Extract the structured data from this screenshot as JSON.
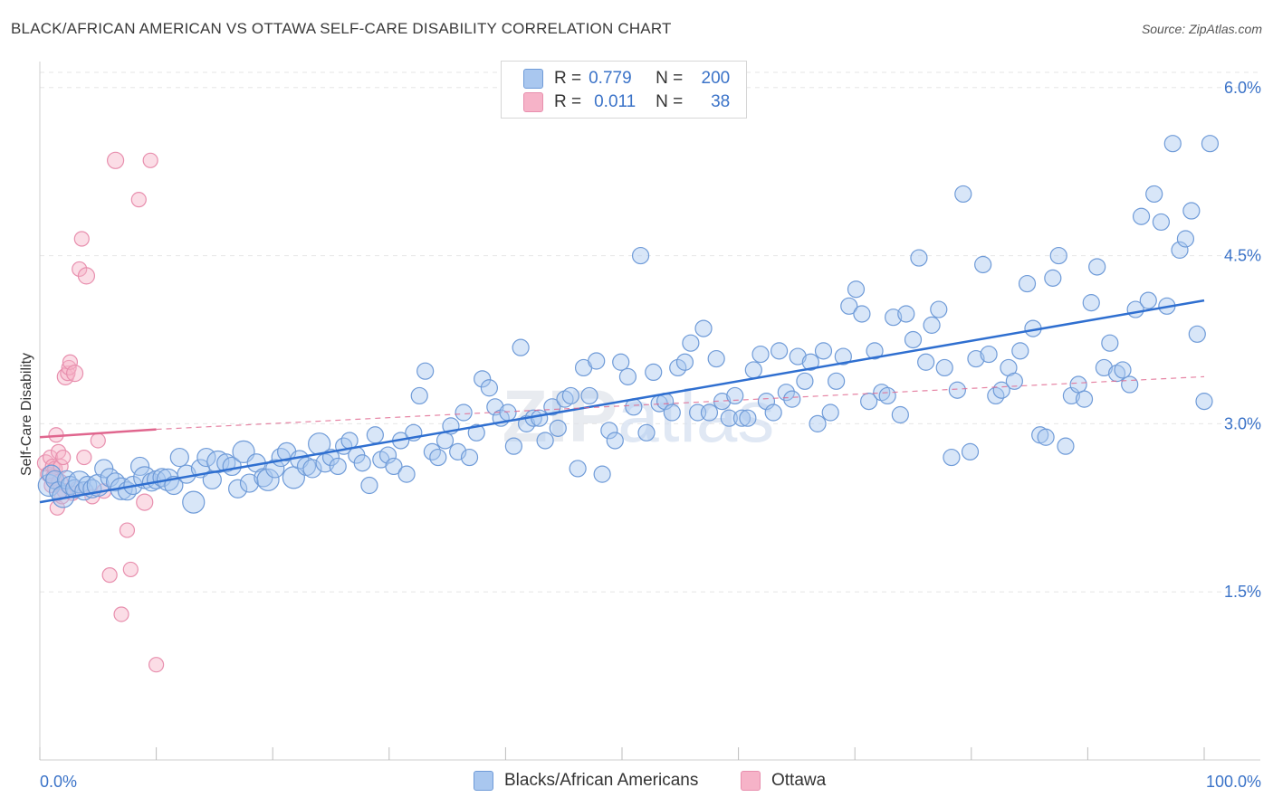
{
  "header": {
    "title": "BLACK/AFRICAN AMERICAN VS OTTAWA SELF-CARE DISABILITY CORRELATION CHART",
    "source": "Source: ZipAtlas.com"
  },
  "legend": {
    "rows": [
      {
        "r_label": "R =",
        "r_value": "0.779",
        "n_label": "N =",
        "n_value": "200",
        "color": "#a9c7ef"
      },
      {
        "r_label": "R =",
        "r_value": "0.011",
        "n_label": "N =",
        "n_value": "38",
        "color": "#f6b3c8"
      }
    ]
  },
  "bottom_legend": [
    {
      "label": "Blacks/African Americans",
      "color": "#a9c7ef"
    },
    {
      "label": "Ottawa",
      "color": "#f6b3c8"
    }
  ],
  "colors": {
    "blue_fill": "#a9c7ef",
    "blue_stroke": "#6f9bd8",
    "blue_line": "#2f6fd0",
    "pink_fill": "#f6b3c8",
    "pink_stroke": "#e88fae",
    "pink_line": "#e0668e",
    "tick_label": "#3b73c8",
    "grid": "#e6e6e6"
  },
  "chart_data": {
    "type": "scatter",
    "title": "BLACK/AFRICAN AMERICAN VS OTTAWA SELF-CARE DISABILITY CORRELATION CHART",
    "xlabel": "",
    "ylabel": "Self-Care Disability",
    "xlim": [
      0,
      100
    ],
    "ylim": [
      0,
      6.2
    ],
    "x_tick_labels": [
      "0.0%",
      "100.0%"
    ],
    "y_ticks": [
      1.5,
      3.0,
      4.5,
      6.0
    ],
    "y_tick_labels": [
      "1.5%",
      "3.0%",
      "4.5%",
      "6.0%"
    ],
    "grid": true,
    "watermark": "ZIPatlas",
    "series": [
      {
        "name": "Blacks/African Americans",
        "R": 0.779,
        "N": 200,
        "trend": {
          "x": [
            0,
            100
          ],
          "y": [
            2.3,
            4.1
          ]
        },
        "points": [
          [
            0.8,
            2.45
          ],
          [
            1.0,
            2.55
          ],
          [
            1.3,
            2.5
          ],
          [
            1.6,
            2.4
          ],
          [
            2.0,
            2.35
          ],
          [
            2.3,
            2.5
          ],
          [
            2.6,
            2.45
          ],
          [
            3.0,
            2.42
          ],
          [
            3.4,
            2.48
          ],
          [
            3.8,
            2.4
          ],
          [
            4.1,
            2.45
          ],
          [
            4.5,
            2.42
          ],
          [
            5.0,
            2.45
          ],
          [
            5.5,
            2.6
          ],
          [
            6.0,
            2.52
          ],
          [
            6.5,
            2.48
          ],
          [
            7.0,
            2.42
          ],
          [
            7.5,
            2.4
          ],
          [
            8.0,
            2.45
          ],
          [
            8.6,
            2.62
          ],
          [
            9.0,
            2.52
          ],
          [
            9.6,
            2.48
          ],
          [
            10.0,
            2.5
          ],
          [
            10.5,
            2.52
          ],
          [
            11.0,
            2.5
          ],
          [
            11.5,
            2.45
          ],
          [
            12.0,
            2.7
          ],
          [
            12.6,
            2.55
          ],
          [
            13.2,
            2.3
          ],
          [
            13.8,
            2.6
          ],
          [
            14.3,
            2.7
          ],
          [
            14.8,
            2.5
          ],
          [
            15.3,
            2.66
          ],
          [
            16.0,
            2.65
          ],
          [
            16.5,
            2.62
          ],
          [
            17.0,
            2.42
          ],
          [
            17.5,
            2.75
          ],
          [
            18.0,
            2.47
          ],
          [
            18.6,
            2.65
          ],
          [
            19.2,
            2.52
          ],
          [
            19.6,
            2.5
          ],
          [
            20.2,
            2.6
          ],
          [
            20.7,
            2.7
          ],
          [
            21.2,
            2.75
          ],
          [
            21.8,
            2.52
          ],
          [
            22.3,
            2.68
          ],
          [
            22.9,
            2.62
          ],
          [
            23.4,
            2.6
          ],
          [
            24.0,
            2.82
          ],
          [
            24.5,
            2.65
          ],
          [
            25.0,
            2.7
          ],
          [
            25.6,
            2.62
          ],
          [
            26.1,
            2.8
          ],
          [
            26.6,
            2.85
          ],
          [
            27.2,
            2.72
          ],
          [
            27.7,
            2.65
          ],
          [
            28.3,
            2.45
          ],
          [
            28.8,
            2.9
          ],
          [
            29.3,
            2.68
          ],
          [
            29.9,
            2.72
          ],
          [
            30.4,
            2.62
          ],
          [
            31.0,
            2.85
          ],
          [
            31.5,
            2.55
          ],
          [
            32.1,
            2.92
          ],
          [
            32.6,
            3.25
          ],
          [
            33.1,
            3.47
          ],
          [
            33.7,
            2.75
          ],
          [
            34.2,
            2.7
          ],
          [
            34.8,
            2.85
          ],
          [
            35.3,
            2.98
          ],
          [
            35.9,
            2.75
          ],
          [
            36.4,
            3.1
          ],
          [
            36.9,
            2.7
          ],
          [
            37.5,
            2.92
          ],
          [
            38.0,
            3.4
          ],
          [
            38.6,
            3.32
          ],
          [
            39.1,
            3.15
          ],
          [
            39.6,
            3.05
          ],
          [
            40.2,
            3.1
          ],
          [
            40.7,
            2.8
          ],
          [
            41.3,
            3.68
          ],
          [
            41.8,
            3.0
          ],
          [
            42.4,
            3.05
          ],
          [
            42.9,
            3.05
          ],
          [
            43.4,
            2.85
          ],
          [
            44.0,
            3.15
          ],
          [
            44.5,
            2.96
          ],
          [
            45.1,
            3.22
          ],
          [
            45.6,
            3.25
          ],
          [
            46.2,
            2.6
          ],
          [
            46.7,
            3.5
          ],
          [
            47.2,
            3.25
          ],
          [
            47.8,
            3.56
          ],
          [
            48.3,
            2.55
          ],
          [
            48.9,
            2.94
          ],
          [
            49.4,
            2.85
          ],
          [
            49.9,
            3.55
          ],
          [
            50.5,
            3.42
          ],
          [
            51.0,
            3.15
          ],
          [
            51.6,
            4.5
          ],
          [
            52.1,
            2.92
          ],
          [
            52.7,
            3.46
          ],
          [
            53.2,
            3.18
          ],
          [
            53.7,
            3.2
          ],
          [
            54.3,
            3.1
          ],
          [
            54.8,
            3.5
          ],
          [
            55.4,
            3.55
          ],
          [
            55.9,
            3.72
          ],
          [
            56.5,
            3.1
          ],
          [
            57.0,
            3.85
          ],
          [
            57.5,
            3.1
          ],
          [
            58.1,
            3.58
          ],
          [
            58.6,
            3.2
          ],
          [
            59.2,
            3.05
          ],
          [
            59.7,
            3.25
          ],
          [
            60.3,
            3.05
          ],
          [
            60.8,
            3.05
          ],
          [
            61.3,
            3.48
          ],
          [
            61.9,
            3.62
          ],
          [
            62.4,
            3.2
          ],
          [
            63.0,
            3.1
          ],
          [
            63.5,
            3.65
          ],
          [
            64.1,
            3.28
          ],
          [
            64.6,
            3.22
          ],
          [
            65.1,
            3.6
          ],
          [
            65.7,
            3.38
          ],
          [
            66.2,
            3.55
          ],
          [
            66.8,
            3.0
          ],
          [
            67.3,
            3.65
          ],
          [
            67.9,
            3.1
          ],
          [
            68.4,
            3.38
          ],
          [
            69.0,
            3.6
          ],
          [
            69.5,
            4.05
          ],
          [
            70.1,
            4.2
          ],
          [
            70.6,
            3.98
          ],
          [
            71.2,
            3.2
          ],
          [
            71.7,
            3.65
          ],
          [
            72.3,
            3.28
          ],
          [
            72.8,
            3.25
          ],
          [
            73.3,
            3.95
          ],
          [
            73.9,
            3.08
          ],
          [
            74.4,
            3.98
          ],
          [
            75.0,
            3.75
          ],
          [
            75.5,
            4.48
          ],
          [
            76.1,
            3.55
          ],
          [
            76.6,
            3.88
          ],
          [
            77.2,
            4.02
          ],
          [
            77.7,
            3.5
          ],
          [
            78.3,
            2.7
          ],
          [
            78.8,
            3.3
          ],
          [
            79.3,
            5.05
          ],
          [
            79.9,
            2.75
          ],
          [
            80.4,
            3.58
          ],
          [
            81.0,
            4.42
          ],
          [
            81.5,
            3.62
          ],
          [
            82.1,
            3.25
          ],
          [
            82.6,
            3.3
          ],
          [
            83.2,
            3.5
          ],
          [
            83.7,
            3.38
          ],
          [
            84.2,
            3.65
          ],
          [
            84.8,
            4.25
          ],
          [
            85.3,
            3.85
          ],
          [
            85.9,
            2.9
          ],
          [
            86.4,
            2.88
          ],
          [
            87.0,
            4.3
          ],
          [
            87.5,
            4.5
          ],
          [
            88.1,
            2.8
          ],
          [
            88.6,
            3.25
          ],
          [
            89.2,
            3.35
          ],
          [
            89.7,
            3.22
          ],
          [
            90.3,
            4.08
          ],
          [
            90.8,
            4.4
          ],
          [
            91.4,
            3.5
          ],
          [
            91.9,
            3.72
          ],
          [
            92.5,
            3.45
          ],
          [
            93.0,
            3.48
          ],
          [
            93.6,
            3.35
          ],
          [
            94.1,
            4.02
          ],
          [
            94.6,
            4.85
          ],
          [
            95.2,
            4.1
          ],
          [
            95.7,
            5.05
          ],
          [
            96.3,
            4.8
          ],
          [
            96.8,
            4.05
          ],
          [
            97.3,
            5.5
          ],
          [
            97.9,
            4.55
          ],
          [
            98.4,
            4.65
          ],
          [
            98.9,
            4.9
          ],
          [
            99.4,
            3.8
          ],
          [
            100.0,
            3.2
          ],
          [
            100.5,
            5.5
          ]
        ]
      },
      {
        "name": "Ottawa",
        "R": 0.011,
        "N": 38,
        "trend": {
          "x": [
            0,
            10,
            100
          ],
          "y": [
            2.88,
            2.95,
            3.42
          ]
        },
        "points": [
          [
            0.5,
            2.65
          ],
          [
            0.7,
            2.55
          ],
          [
            0.9,
            2.7
          ],
          [
            1.0,
            2.45
          ],
          [
            1.1,
            2.62
          ],
          [
            1.2,
            2.52
          ],
          [
            1.3,
            2.6
          ],
          [
            1.4,
            2.9
          ],
          [
            1.5,
            2.25
          ],
          [
            1.6,
            2.75
          ],
          [
            1.7,
            2.48
          ],
          [
            1.8,
            2.62
          ],
          [
            1.9,
            2.35
          ],
          [
            2.0,
            2.7
          ],
          [
            2.1,
            2.4
          ],
          [
            2.2,
            3.42
          ],
          [
            2.4,
            3.45
          ],
          [
            2.5,
            3.5
          ],
          [
            2.6,
            3.55
          ],
          [
            2.8,
            2.38
          ],
          [
            3.0,
            3.45
          ],
          [
            3.2,
            2.42
          ],
          [
            3.4,
            4.38
          ],
          [
            3.6,
            4.65
          ],
          [
            3.8,
            2.7
          ],
          [
            4.0,
            4.32
          ],
          [
            4.5,
            2.35
          ],
          [
            5.0,
            2.85
          ],
          [
            5.5,
            2.4
          ],
          [
            6.0,
            1.65
          ],
          [
            6.5,
            5.35
          ],
          [
            7.0,
            1.3
          ],
          [
            7.5,
            2.05
          ],
          [
            7.8,
            1.7
          ],
          [
            8.5,
            5.0
          ],
          [
            9.0,
            2.3
          ],
          [
            9.5,
            5.35
          ],
          [
            10.0,
            0.85
          ]
        ]
      }
    ]
  }
}
